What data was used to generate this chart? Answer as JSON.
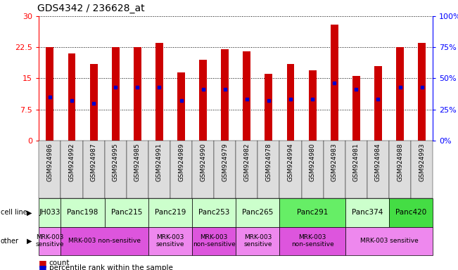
{
  "title": "GDS4342 / 236628_at",
  "samples": [
    "GSM924986",
    "GSM924992",
    "GSM924987",
    "GSM924995",
    "GSM924985",
    "GSM924991",
    "GSM924989",
    "GSM924990",
    "GSM924979",
    "GSM924982",
    "GSM924978",
    "GSM924994",
    "GSM924980",
    "GSM924983",
    "GSM924981",
    "GSM924984",
    "GSM924988",
    "GSM924993"
  ],
  "counts": [
    22.5,
    21.0,
    18.5,
    22.5,
    22.5,
    23.5,
    16.5,
    19.5,
    22.0,
    21.5,
    16.0,
    18.5,
    17.0,
    28.0,
    15.5,
    18.0,
    22.5,
    23.5
  ],
  "percentile_ranks": [
    35,
    32,
    30,
    43,
    43,
    43,
    32,
    41,
    41,
    33,
    32,
    33,
    33,
    46,
    41,
    33,
    43,
    43
  ],
  "cell_lines": [
    {
      "label": "JH033",
      "start": 0,
      "end": 1,
      "color": "#ccffcc"
    },
    {
      "label": "Panc198",
      "start": 1,
      "end": 3,
      "color": "#ccffcc"
    },
    {
      "label": "Panc215",
      "start": 3,
      "end": 5,
      "color": "#ccffcc"
    },
    {
      "label": "Panc219",
      "start": 5,
      "end": 7,
      "color": "#ccffcc"
    },
    {
      "label": "Panc253",
      "start": 7,
      "end": 9,
      "color": "#ccffcc"
    },
    {
      "label": "Panc265",
      "start": 9,
      "end": 11,
      "color": "#ccffcc"
    },
    {
      "label": "Panc291",
      "start": 11,
      "end": 14,
      "color": "#66ee66"
    },
    {
      "label": "Panc374",
      "start": 14,
      "end": 16,
      "color": "#ccffcc"
    },
    {
      "label": "Panc420",
      "start": 16,
      "end": 18,
      "color": "#44dd44"
    }
  ],
  "other_groups": [
    {
      "label": "MRK-003\nsensitive",
      "start": 0,
      "end": 1,
      "color": "#ee88ee"
    },
    {
      "label": "MRK-003 non-sensitive",
      "start": 1,
      "end": 5,
      "color": "#dd55dd"
    },
    {
      "label": "MRK-003\nsensitive",
      "start": 5,
      "end": 7,
      "color": "#ee88ee"
    },
    {
      "label": "MRK-003\nnon-sensitive",
      "start": 7,
      "end": 9,
      "color": "#dd55dd"
    },
    {
      "label": "MRK-003\nsensitive",
      "start": 9,
      "end": 11,
      "color": "#ee88ee"
    },
    {
      "label": "MRK-003\nnon-sensitive",
      "start": 11,
      "end": 14,
      "color": "#dd55dd"
    },
    {
      "label": "MRK-003 sensitive",
      "start": 14,
      "end": 18,
      "color": "#ee88ee"
    }
  ],
  "ylim_left": [
    0,
    30
  ],
  "ylim_right": [
    0,
    100
  ],
  "yticks_left": [
    0,
    7.5,
    15,
    22.5,
    30
  ],
  "yticks_right": [
    0,
    25,
    50,
    75,
    100
  ],
  "ytick_labels_left": [
    "0",
    "7.5",
    "15",
    "22.5",
    "30"
  ],
  "ytick_labels_right": [
    "0%",
    "25%",
    "50%",
    "75%",
    "100%"
  ],
  "bar_color": "#cc0000",
  "dot_color": "#0000cc",
  "bar_width": 0.35,
  "background_color": "#ffffff"
}
